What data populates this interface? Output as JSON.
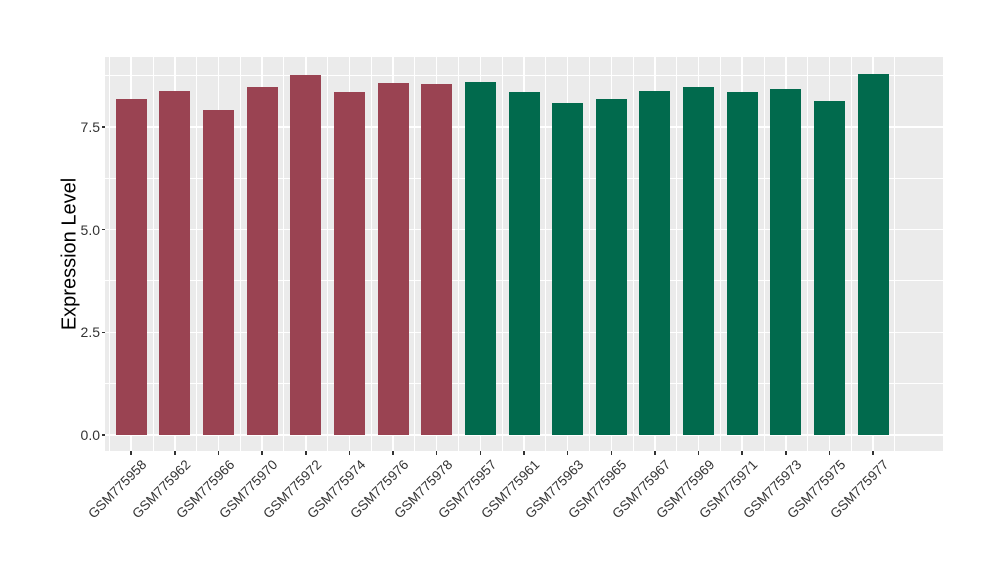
{
  "figure": {
    "background": "#FFFFFF",
    "panel_background": "#EBEBEB",
    "grid_color": "#FFFFFF",
    "tick_mark_color": "#333333",
    "axis_text_color": "#333333",
    "axis_title_color": "#000000",
    "bar_color_left_group": "#9A4352",
    "bar_color_right_group": "#016A4D"
  },
  "chart_data": {
    "type": "bar",
    "title": "",
    "xlabel": "",
    "ylabel": "Expression Level",
    "ylim": [
      0,
      9.2
    ],
    "yticks": [
      "0.0",
      "2.5",
      "5.0",
      "7.5"
    ],
    "grid": "white major and minor gridlines on gray panel",
    "legend": "none",
    "categories": [
      "GSM775958",
      "GSM775962",
      "GSM775966",
      "GSM775970",
      "GSM775972",
      "GSM775974",
      "GSM775976",
      "GSM775978",
      "GSM775957",
      "GSM775961",
      "GSM775963",
      "GSM775965",
      "GSM775967",
      "GSM775969",
      "GSM775971",
      "GSM775973",
      "GSM775975",
      "GSM775977"
    ],
    "values": [
      8.18,
      8.37,
      7.91,
      8.47,
      8.76,
      8.36,
      8.56,
      8.54,
      8.59,
      8.35,
      8.09,
      8.18,
      8.38,
      8.48,
      8.35,
      8.43,
      8.14,
      8.78
    ],
    "bar_colors": [
      "#9A4352",
      "#9A4352",
      "#9A4352",
      "#9A4352",
      "#9A4352",
      "#9A4352",
      "#9A4352",
      "#9A4352",
      "#016A4D",
      "#016A4D",
      "#016A4D",
      "#016A4D",
      "#016A4D",
      "#016A4D",
      "#016A4D",
      "#016A4D",
      "#016A4D",
      "#016A4D"
    ]
  }
}
